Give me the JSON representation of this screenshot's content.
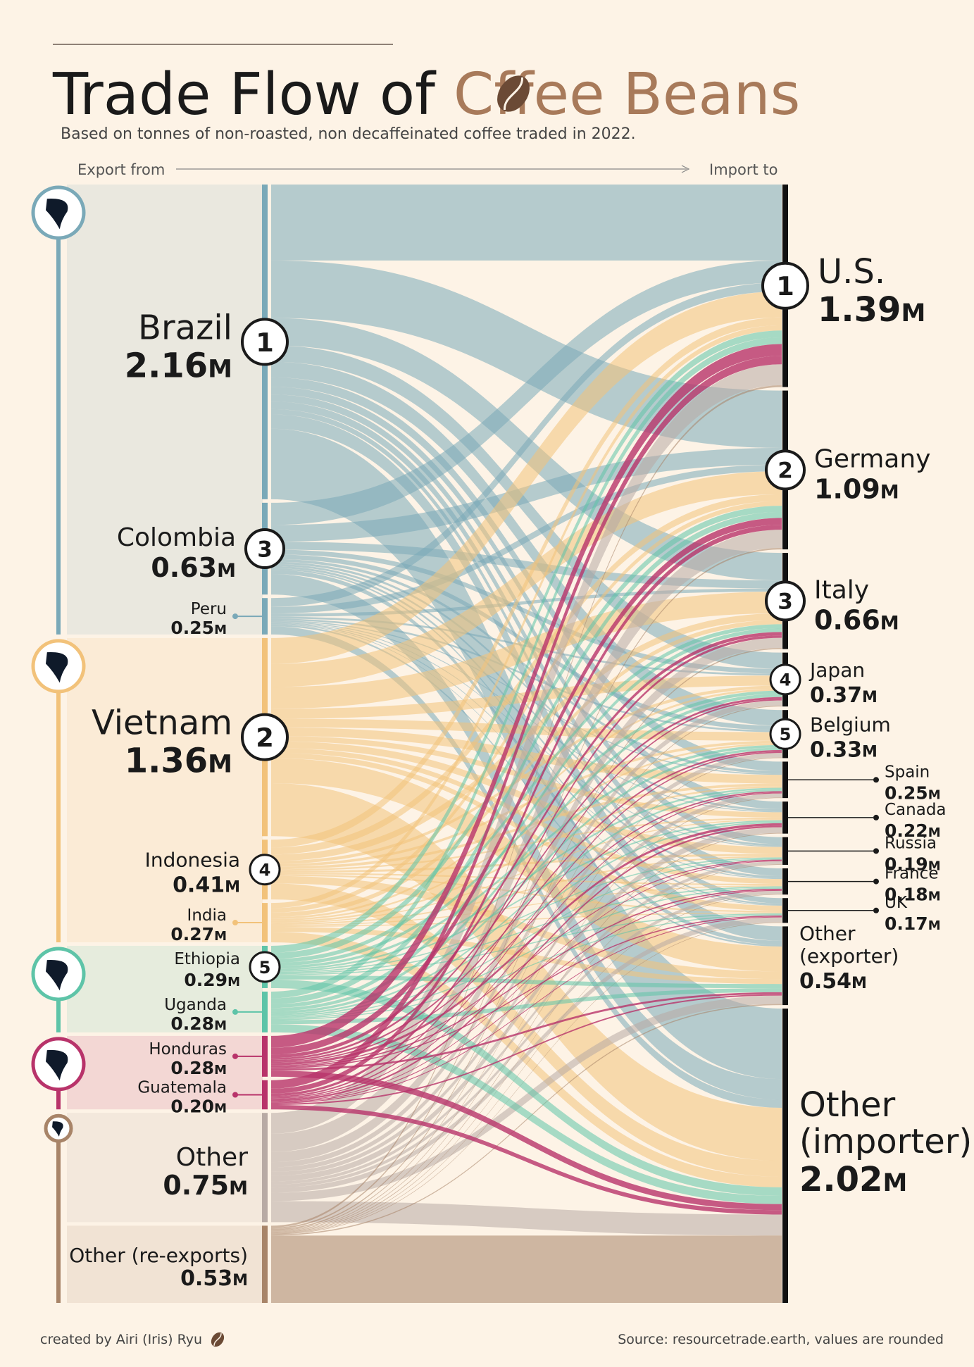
{
  "header": {
    "title_part1": "Trade Flow of ",
    "title_part2_prefix": "C",
    "title_part2_suffix": "ffee Beans",
    "subtitle": "Based on tonnes of non-roasted,  non decaffeinated coffee traded in 2022.",
    "export_from": "Export from",
    "import_to": "Import to"
  },
  "footer": {
    "credit": "created by Airi (Iris) Ryu",
    "source": "Source: resourcetrade.earth, values are rounded"
  },
  "colors": {
    "background": "#fdf3e6",
    "south_america": "#7aa9b8",
    "asia": "#f2c27a",
    "africa": "#5ec4a8",
    "central_america": "#b8336a",
    "other": "#b8aaa4",
    "re_exports": "#a88468",
    "title_accent": "#a87a5a"
  },
  "icons": [
    "south-america-map-icon",
    "asia-map-icon",
    "africa-map-icon",
    "central-america-map-icon",
    "europe-map-icon",
    "coffee-bean-icon"
  ],
  "chart_data": {
    "type": "sankey",
    "title": "Trade Flow of Coffee Beans",
    "subtitle": "Based on tonnes of non-roasted,  non decaffeinated coffee traded in 2022.",
    "unit_suffix": "M",
    "sources": [
      {
        "name": "Brazil",
        "value": 2.16,
        "label": "2.16",
        "rank": "1",
        "region": "south_america"
      },
      {
        "name": "Colombia",
        "value": 0.63,
        "label": "0.63",
        "rank": "3",
        "region": "south_america"
      },
      {
        "name": "Peru",
        "value": 0.25,
        "label": "0.25",
        "rank": "",
        "region": "south_america"
      },
      {
        "name": "Vietnam",
        "value": 1.36,
        "label": "1.36",
        "rank": "2",
        "region": "asia"
      },
      {
        "name": "Indonesia",
        "value": 0.41,
        "label": "0.41",
        "rank": "4",
        "region": "asia"
      },
      {
        "name": "India",
        "value": 0.27,
        "label": "0.27",
        "rank": "",
        "region": "asia"
      },
      {
        "name": "Ethiopia",
        "value": 0.29,
        "label": "0.29",
        "rank": "5",
        "region": "africa"
      },
      {
        "name": "Uganda",
        "value": 0.28,
        "label": "0.28",
        "rank": "",
        "region": "africa"
      },
      {
        "name": "Honduras",
        "value": 0.28,
        "label": "0.28",
        "rank": "",
        "region": "central_america"
      },
      {
        "name": "Guatemala",
        "value": 0.2,
        "label": "0.20",
        "rank": "",
        "region": "central_america"
      },
      {
        "name": "Other",
        "value": 0.75,
        "label": "0.75",
        "rank": "",
        "region": "other"
      },
      {
        "name": "Other (re-exports)",
        "value": 0.53,
        "label": "0.53",
        "rank": "",
        "region": "re_exports"
      }
    ],
    "targets": [
      {
        "name": "U.S.",
        "value": 1.39,
        "label": "1.39",
        "rank": "1"
      },
      {
        "name": "Germany",
        "value": 1.09,
        "label": "1.09",
        "rank": "2"
      },
      {
        "name": "Italy",
        "value": 0.66,
        "label": "0.66",
        "rank": "3"
      },
      {
        "name": "Japan",
        "value": 0.37,
        "label": "0.37",
        "rank": "4"
      },
      {
        "name": "Belgium",
        "value": 0.33,
        "label": "0.33",
        "rank": "5"
      },
      {
        "name": "Spain",
        "value": 0.25,
        "label": "0.25",
        "rank": ""
      },
      {
        "name": "Canada",
        "value": 0.22,
        "label": "0.22",
        "rank": ""
      },
      {
        "name": "Russia",
        "value": 0.19,
        "label": "0.19",
        "rank": ""
      },
      {
        "name": "France",
        "value": 0.18,
        "label": "0.18",
        "rank": ""
      },
      {
        "name": "UK",
        "value": 0.17,
        "label": "0.17",
        "rank": ""
      },
      {
        "name": "Other (exporter)",
        "value": 0.54,
        "label": "0.54",
        "rank": ""
      },
      {
        "name": "Other (importer)",
        "value": 2.02,
        "label": "2.02",
        "rank": ""
      }
    ],
    "flows_note": "values are rounded"
  }
}
